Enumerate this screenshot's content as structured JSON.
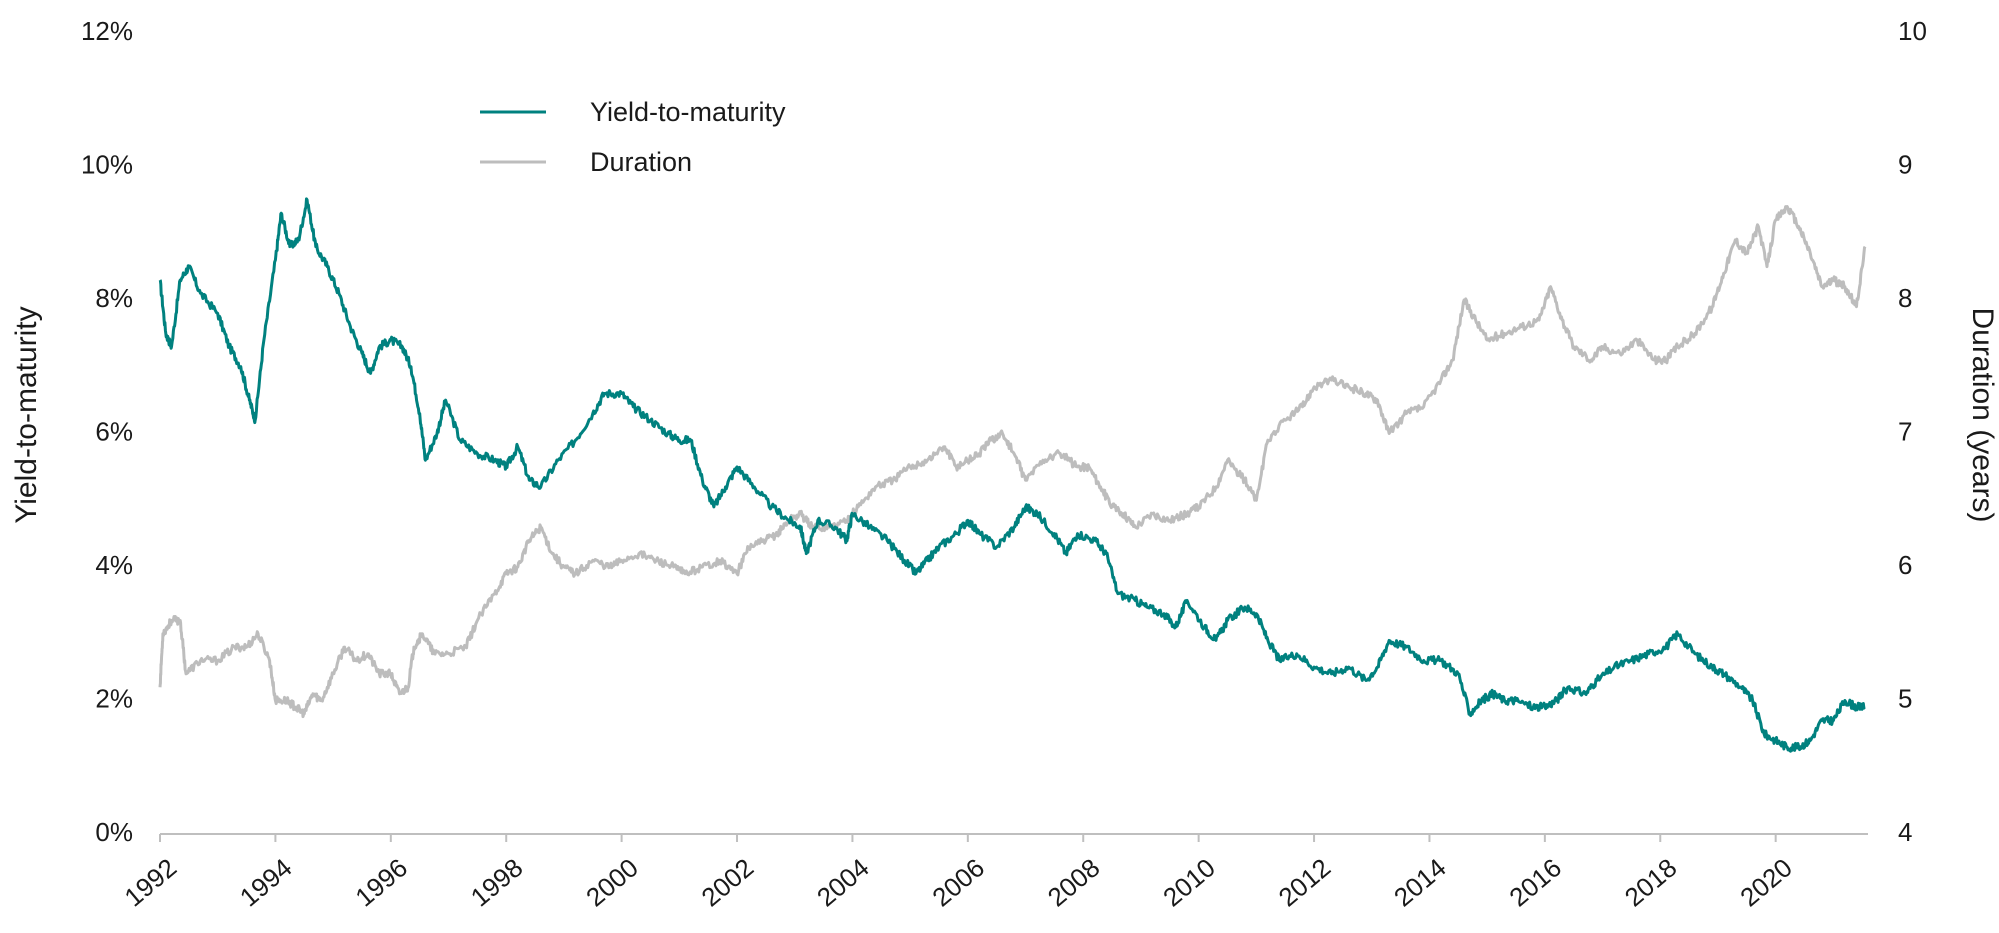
{
  "chart_data": {
    "type": "line",
    "x_axis": {
      "ticks": [
        "1992",
        "1994",
        "1996",
        "1998",
        "2000",
        "2002",
        "2004",
        "2006",
        "2008",
        "2010",
        "2012",
        "2014",
        "2016",
        "2018",
        "2020"
      ],
      "range": [
        1992,
        2021.6
      ]
    },
    "y_left": {
      "label": "Yield-to-maturity",
      "range": [
        0,
        12
      ],
      "ticks": [
        "0%",
        "2%",
        "4%",
        "6%",
        "8%",
        "10%",
        "12%"
      ]
    },
    "y_right": {
      "label": "Duration (years)",
      "range": [
        4,
        10
      ],
      "ticks": [
        "4",
        "5",
        "6",
        "7",
        "8",
        "9",
        "10"
      ]
    },
    "legend": {
      "placement": "top-left",
      "entries": [
        "Yield-to-maturity",
        "Duration"
      ]
    },
    "grid": false,
    "colors": {
      "Yield-to-maturity": "#00817f",
      "Duration": "#bdbdbd"
    },
    "series": [
      {
        "name": "Yield-to-maturity",
        "axis": "left",
        "points": [
          [
            1992.0,
            8.3
          ],
          [
            1992.1,
            7.5
          ],
          [
            1992.2,
            7.3
          ],
          [
            1992.35,
            8.3
          ],
          [
            1992.5,
            8.5
          ],
          [
            1992.7,
            8.1
          ],
          [
            1993.0,
            7.8
          ],
          [
            1993.2,
            7.3
          ],
          [
            1993.4,
            7.0
          ],
          [
            1993.55,
            6.5
          ],
          [
            1993.65,
            6.2
          ],
          [
            1993.8,
            7.4
          ],
          [
            1994.0,
            8.6
          ],
          [
            1994.1,
            9.3
          ],
          [
            1994.25,
            8.8
          ],
          [
            1994.4,
            8.9
          ],
          [
            1994.55,
            9.5
          ],
          [
            1994.7,
            8.8
          ],
          [
            1994.9,
            8.5
          ],
          [
            1995.1,
            8.1
          ],
          [
            1995.3,
            7.6
          ],
          [
            1995.5,
            7.2
          ],
          [
            1995.65,
            6.9
          ],
          [
            1995.8,
            7.3
          ],
          [
            1996.0,
            7.4
          ],
          [
            1996.2,
            7.3
          ],
          [
            1996.35,
            7.0
          ],
          [
            1996.5,
            6.3
          ],
          [
            1996.6,
            5.6
          ],
          [
            1996.8,
            6.0
          ],
          [
            1996.95,
            6.5
          ],
          [
            1997.2,
            5.9
          ],
          [
            1997.5,
            5.7
          ],
          [
            1997.8,
            5.6
          ],
          [
            1998.0,
            5.5
          ],
          [
            1998.2,
            5.8
          ],
          [
            1998.4,
            5.3
          ],
          [
            1998.6,
            5.2
          ],
          [
            1998.9,
            5.6
          ],
          [
            1999.2,
            5.9
          ],
          [
            1999.5,
            6.3
          ],
          [
            1999.7,
            6.6
          ],
          [
            2000.0,
            6.6
          ],
          [
            2000.2,
            6.4
          ],
          [
            2000.5,
            6.2
          ],
          [
            2000.8,
            6.0
          ],
          [
            2001.0,
            5.9
          ],
          [
            2001.2,
            5.9
          ],
          [
            2001.4,
            5.3
          ],
          [
            2001.6,
            4.9
          ],
          [
            2001.8,
            5.2
          ],
          [
            2002.0,
            5.5
          ],
          [
            2002.3,
            5.2
          ],
          [
            2002.6,
            4.9
          ],
          [
            2002.9,
            4.7
          ],
          [
            2003.1,
            4.6
          ],
          [
            2003.2,
            4.2
          ],
          [
            2003.4,
            4.7
          ],
          [
            2003.7,
            4.6
          ],
          [
            2003.9,
            4.4
          ],
          [
            2004.0,
            4.8
          ],
          [
            2004.3,
            4.6
          ],
          [
            2004.6,
            4.4
          ],
          [
            2004.9,
            4.1
          ],
          [
            2005.1,
            3.9
          ],
          [
            2005.3,
            4.1
          ],
          [
            2005.5,
            4.3
          ],
          [
            2005.8,
            4.5
          ],
          [
            2006.0,
            4.7
          ],
          [
            2006.2,
            4.5
          ],
          [
            2006.5,
            4.3
          ],
          [
            2006.8,
            4.6
          ],
          [
            2007.0,
            4.9
          ],
          [
            2007.2,
            4.8
          ],
          [
            2007.5,
            4.5
          ],
          [
            2007.7,
            4.2
          ],
          [
            2007.9,
            4.5
          ],
          [
            2008.2,
            4.4
          ],
          [
            2008.4,
            4.2
          ],
          [
            2008.6,
            3.6
          ],
          [
            2008.9,
            3.5
          ],
          [
            2009.1,
            3.4
          ],
          [
            2009.4,
            3.3
          ],
          [
            2009.6,
            3.1
          ],
          [
            2009.8,
            3.5
          ],
          [
            2010.1,
            3.1
          ],
          [
            2010.3,
            2.9
          ],
          [
            2010.5,
            3.2
          ],
          [
            2010.8,
            3.4
          ],
          [
            2011.0,
            3.3
          ],
          [
            2011.2,
            2.9
          ],
          [
            2011.4,
            2.6
          ],
          [
            2011.7,
            2.7
          ],
          [
            2012.0,
            2.5
          ],
          [
            2012.3,
            2.4
          ],
          [
            2012.6,
            2.5
          ],
          [
            2012.9,
            2.3
          ],
          [
            2013.1,
            2.5
          ],
          [
            2013.3,
            2.9
          ],
          [
            2013.6,
            2.8
          ],
          [
            2013.9,
            2.6
          ],
          [
            2014.2,
            2.6
          ],
          [
            2014.5,
            2.4
          ],
          [
            2014.7,
            1.8
          ],
          [
            2014.9,
            2.0
          ],
          [
            2015.1,
            2.1
          ],
          [
            2015.3,
            2.0
          ],
          [
            2015.5,
            2.0
          ],
          [
            2015.8,
            1.9
          ],
          [
            2016.0,
            1.9
          ],
          [
            2016.2,
            2.0
          ],
          [
            2016.4,
            2.2
          ],
          [
            2016.7,
            2.1
          ],
          [
            2016.9,
            2.3
          ],
          [
            2017.2,
            2.5
          ],
          [
            2017.5,
            2.6
          ],
          [
            2017.8,
            2.7
          ],
          [
            2018.1,
            2.8
          ],
          [
            2018.3,
            3.0
          ],
          [
            2018.6,
            2.7
          ],
          [
            2018.9,
            2.5
          ],
          [
            2019.1,
            2.4
          ],
          [
            2019.4,
            2.2
          ],
          [
            2019.6,
            2.0
          ],
          [
            2019.8,
            1.5
          ],
          [
            2020.0,
            1.4
          ],
          [
            2020.2,
            1.3
          ],
          [
            2020.4,
            1.3
          ],
          [
            2020.6,
            1.4
          ],
          [
            2020.8,
            1.7
          ],
          [
            2021.0,
            1.7
          ],
          [
            2021.2,
            2.0
          ],
          [
            2021.4,
            1.9
          ],
          [
            2021.55,
            1.9
          ]
        ]
      },
      {
        "name": "Duration",
        "axis": "right",
        "points": [
          [
            1992.0,
            5.1
          ],
          [
            1992.05,
            5.5
          ],
          [
            1992.2,
            5.6
          ],
          [
            1992.35,
            5.6
          ],
          [
            1992.45,
            5.2
          ],
          [
            1992.7,
            5.3
          ],
          [
            1993.0,
            5.3
          ],
          [
            1993.3,
            5.4
          ],
          [
            1993.5,
            5.4
          ],
          [
            1993.7,
            5.5
          ],
          [
            1993.9,
            5.3
          ],
          [
            1994.0,
            5.0
          ],
          [
            1994.2,
            5.0
          ],
          [
            1994.35,
            4.95
          ],
          [
            1994.5,
            4.9
          ],
          [
            1994.65,
            5.05
          ],
          [
            1994.8,
            5.0
          ],
          [
            1995.0,
            5.2
          ],
          [
            1995.2,
            5.4
          ],
          [
            1995.4,
            5.3
          ],
          [
            1995.6,
            5.35
          ],
          [
            1995.8,
            5.2
          ],
          [
            1996.0,
            5.2
          ],
          [
            1996.15,
            5.05
          ],
          [
            1996.3,
            5.1
          ],
          [
            1996.4,
            5.4
          ],
          [
            1996.55,
            5.5
          ],
          [
            1996.75,
            5.35
          ],
          [
            1997.0,
            5.35
          ],
          [
            1997.3,
            5.4
          ],
          [
            1997.5,
            5.6
          ],
          [
            1997.8,
            5.8
          ],
          [
            1998.0,
            5.95
          ],
          [
            1998.2,
            6.0
          ],
          [
            1998.4,
            6.2
          ],
          [
            1998.6,
            6.3
          ],
          [
            1998.8,
            6.1
          ],
          [
            1999.0,
            6.0
          ],
          [
            1999.2,
            5.95
          ],
          [
            1999.5,
            6.05
          ],
          [
            1999.8,
            6.0
          ],
          [
            2000.0,
            6.05
          ],
          [
            2000.3,
            6.1
          ],
          [
            2000.6,
            6.05
          ],
          [
            2000.9,
            6.0
          ],
          [
            2001.1,
            5.95
          ],
          [
            2001.4,
            6.0
          ],
          [
            2001.7,
            6.05
          ],
          [
            2002.0,
            5.95
          ],
          [
            2002.2,
            6.15
          ],
          [
            2002.5,
            6.2
          ],
          [
            2002.7,
            6.25
          ],
          [
            2002.9,
            6.35
          ],
          [
            2003.1,
            6.4
          ],
          [
            2003.3,
            6.3
          ],
          [
            2003.6,
            6.3
          ],
          [
            2003.9,
            6.35
          ],
          [
            2004.1,
            6.45
          ],
          [
            2004.4,
            6.6
          ],
          [
            2004.7,
            6.65
          ],
          [
            2005.0,
            6.75
          ],
          [
            2005.3,
            6.8
          ],
          [
            2005.6,
            6.9
          ],
          [
            2005.8,
            6.75
          ],
          [
            2006.0,
            6.8
          ],
          [
            2006.2,
            6.85
          ],
          [
            2006.4,
            6.95
          ],
          [
            2006.6,
            7.0
          ],
          [
            2006.8,
            6.85
          ],
          [
            2007.0,
            6.65
          ],
          [
            2007.3,
            6.8
          ],
          [
            2007.6,
            6.85
          ],
          [
            2007.9,
            6.75
          ],
          [
            2008.1,
            6.75
          ],
          [
            2008.3,
            6.6
          ],
          [
            2008.5,
            6.45
          ],
          [
            2008.7,
            6.4
          ],
          [
            2008.9,
            6.3
          ],
          [
            2009.2,
            6.4
          ],
          [
            2009.5,
            6.35
          ],
          [
            2009.8,
            6.4
          ],
          [
            2010.0,
            6.45
          ],
          [
            2010.3,
            6.6
          ],
          [
            2010.5,
            6.8
          ],
          [
            2010.8,
            6.65
          ],
          [
            2011.0,
            6.5
          ],
          [
            2011.2,
            6.95
          ],
          [
            2011.5,
            7.1
          ],
          [
            2011.8,
            7.2
          ],
          [
            2012.0,
            7.35
          ],
          [
            2012.3,
            7.4
          ],
          [
            2012.6,
            7.35
          ],
          [
            2012.9,
            7.3
          ],
          [
            2013.1,
            7.25
          ],
          [
            2013.3,
            7.0
          ],
          [
            2013.6,
            7.15
          ],
          [
            2013.9,
            7.2
          ],
          [
            2014.2,
            7.4
          ],
          [
            2014.4,
            7.55
          ],
          [
            2014.6,
            8.0
          ],
          [
            2014.8,
            7.85
          ],
          [
            2015.0,
            7.7
          ],
          [
            2015.3,
            7.75
          ],
          [
            2015.6,
            7.8
          ],
          [
            2015.9,
            7.85
          ],
          [
            2016.1,
            8.1
          ],
          [
            2016.3,
            7.85
          ],
          [
            2016.5,
            7.65
          ],
          [
            2016.8,
            7.55
          ],
          [
            2017.0,
            7.65
          ],
          [
            2017.3,
            7.6
          ],
          [
            2017.6,
            7.7
          ],
          [
            2017.9,
            7.55
          ],
          [
            2018.1,
            7.55
          ],
          [
            2018.3,
            7.65
          ],
          [
            2018.6,
            7.75
          ],
          [
            2018.9,
            7.95
          ],
          [
            2019.1,
            8.2
          ],
          [
            2019.3,
            8.45
          ],
          [
            2019.5,
            8.35
          ],
          [
            2019.7,
            8.55
          ],
          [
            2019.85,
            8.25
          ],
          [
            2020.0,
            8.6
          ],
          [
            2020.2,
            8.7
          ],
          [
            2020.4,
            8.55
          ],
          [
            2020.6,
            8.35
          ],
          [
            2020.8,
            8.1
          ],
          [
            2021.0,
            8.15
          ],
          [
            2021.2,
            8.1
          ],
          [
            2021.4,
            7.95
          ],
          [
            2021.55,
            8.4
          ]
        ]
      }
    ]
  }
}
